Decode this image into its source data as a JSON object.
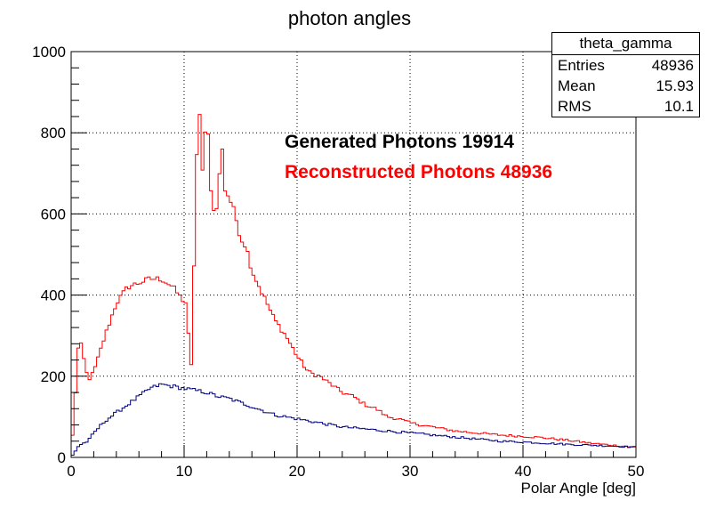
{
  "chart_data": {
    "type": "histogram",
    "title": "photon angles",
    "xlabel": "Polar Angle [deg]",
    "ylabel": "",
    "xlim": [
      0,
      50
    ],
    "ylim": [
      0,
      1000
    ],
    "bin_width": 0.25,
    "xticks": [
      0,
      10,
      20,
      30,
      40,
      50
    ],
    "yticks": [
      0,
      200,
      400,
      600,
      800,
      1000
    ],
    "grid": true,
    "annotations": [
      {
        "text": "Generated Photons 19914",
        "color": "#000000"
      },
      {
        "text": "Reconstructed Photons 48936",
        "color": "#ff0000"
      }
    ],
    "stats_box": {
      "title": "theta_gamma",
      "rows": [
        {
          "label": "Entries",
          "value": "48936"
        },
        {
          "label": "Mean",
          "value": "15.93"
        },
        {
          "label": "RMS",
          "value": "10.1"
        }
      ]
    },
    "series": [
      {
        "color": "#ff0000",
        "x": [
          0,
          0.7,
          1.5,
          2,
          3,
          4,
          5,
          6,
          7,
          8,
          9,
          9.8,
          10.2,
          10.6,
          11,
          11.3,
          11.5,
          11.8,
          12,
          12.5,
          13,
          13.3,
          13.6,
          14,
          14.5,
          15,
          15.5,
          16,
          17,
          18,
          19,
          20,
          21,
          22,
          23,
          24,
          25,
          26,
          27,
          28,
          29,
          30,
          32,
          34,
          36,
          38,
          40,
          42,
          44,
          46,
          48,
          50
        ],
        "y": [
          0,
          300,
          190,
          210,
          300,
          380,
          420,
          430,
          440,
          440,
          420,
          390,
          380,
          200,
          600,
          950,
          650,
          780,
          860,
          600,
          620,
          800,
          660,
          640,
          600,
          540,
          520,
          460,
          400,
          340,
          300,
          250,
          210,
          200,
          180,
          160,
          150,
          130,
          120,
          100,
          95,
          85,
          75,
          65,
          60,
          55,
          52,
          48,
          42,
          35,
          30,
          25
        ]
      },
      {
        "color": "#000080",
        "x": [
          0,
          0.7,
          1.5,
          2,
          3,
          4,
          5,
          6,
          7,
          8,
          9,
          10,
          11,
          12,
          13,
          14,
          15,
          16,
          17,
          18,
          19,
          20,
          22,
          24,
          26,
          28,
          30,
          32,
          34,
          36,
          38,
          40,
          42,
          44,
          46,
          48,
          50
        ],
        "y": [
          0,
          30,
          40,
          60,
          90,
          110,
          130,
          150,
          170,
          180,
          175,
          170,
          165,
          160,
          150,
          145,
          135,
          125,
          115,
          105,
          100,
          95,
          85,
          75,
          70,
          65,
          60,
          55,
          50,
          45,
          40,
          38,
          35,
          32,
          30,
          28,
          25
        ]
      }
    ]
  }
}
